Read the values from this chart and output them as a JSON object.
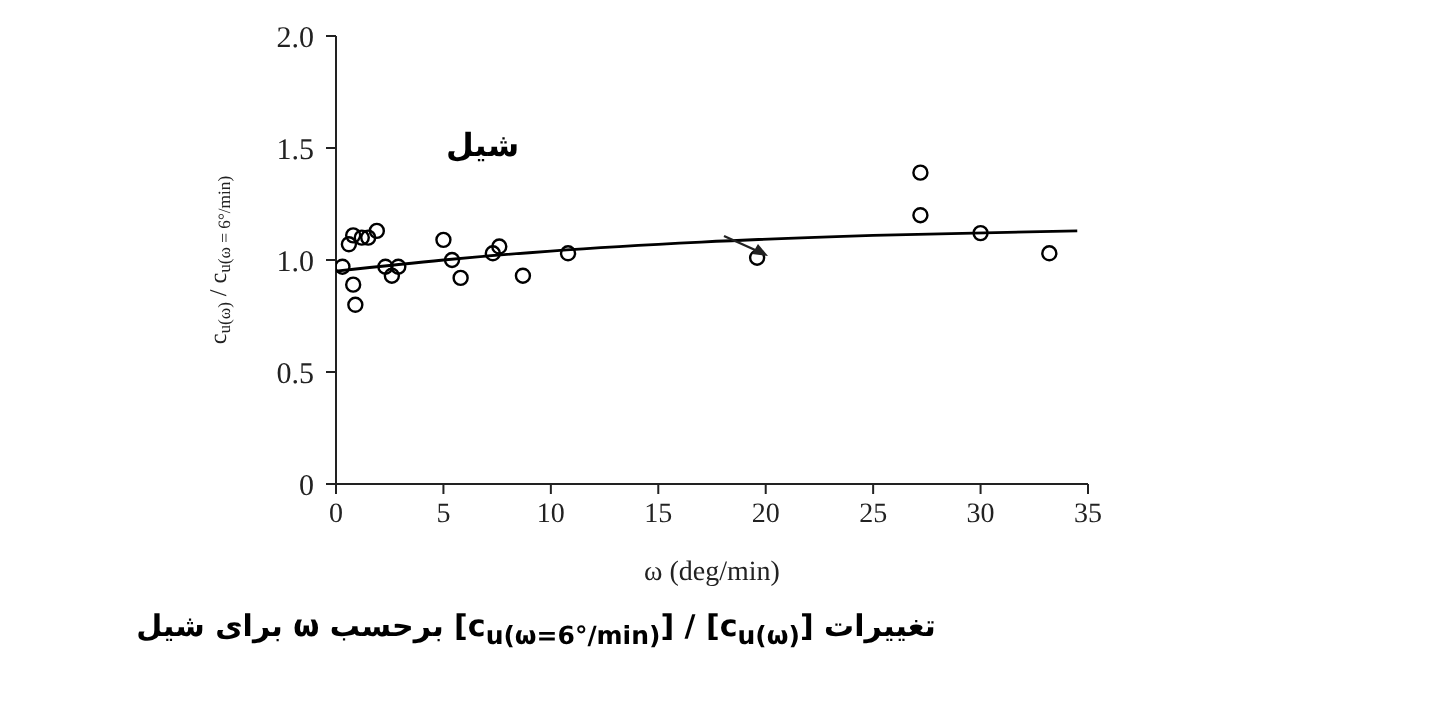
{
  "chart_data": {
    "type": "scatter",
    "xlabel": "ω (deg/min)",
    "ylabel": "c$_{u(ω)}$ / c$_{u(ω = 6°/min)}$",
    "annotations": [
      "شیل",
      "تغییرات [c$_{u(ω)}$] / [c$_{u(ω=6°/min)}$] برحسب ω برای شیل"
    ],
    "series": [
      {
        "color": "#000000",
        "x": [
          0.3,
          0.6,
          0.8,
          0.8,
          0.9,
          1.2,
          1.5,
          1.9,
          2.3,
          2.6,
          2.9,
          5.0,
          5.4,
          5.8,
          7.3,
          7.6,
          8.7,
          10.8,
          19.6,
          27.2,
          27.2,
          30.0,
          33.2
        ],
        "values": [
          0.97,
          1.07,
          1.11,
          0.89,
          0.8,
          1.1,
          1.1,
          1.13,
          0.97,
          0.93,
          0.97,
          1.09,
          1.0,
          0.92,
          1.03,
          1.06,
          0.93,
          1.03,
          1.01,
          1.39,
          1.2,
          1.12,
          1.03
        ]
      },
      {
        "type": "line",
        "color": "#000000",
        "marker": "none",
        "line_style": "solid",
        "x": [
          0,
          5,
          10,
          17,
          25,
          34.5
        ],
        "values": [
          0.95,
          1.0,
          1.04,
          1.08,
          1.11,
          1.13
        ]
      }
    ],
    "marker": "circle",
    "xlim": [
      0,
      35
    ],
    "xticks": [
      0,
      5,
      10,
      15,
      20,
      25,
      30,
      35
    ],
    "ylim": [
      0,
      2
    ],
    "yticks": [
      0,
      {
        "value": 0.5,
        "label": "0.5"
      },
      {
        "value": 1,
        "label": "1.0"
      },
      {
        "value": 1.5,
        "label": "1.5"
      },
      {
        "value": 2,
        "label": "2.0"
      }
    ],
    "grid": false,
    "legend": false
  }
}
